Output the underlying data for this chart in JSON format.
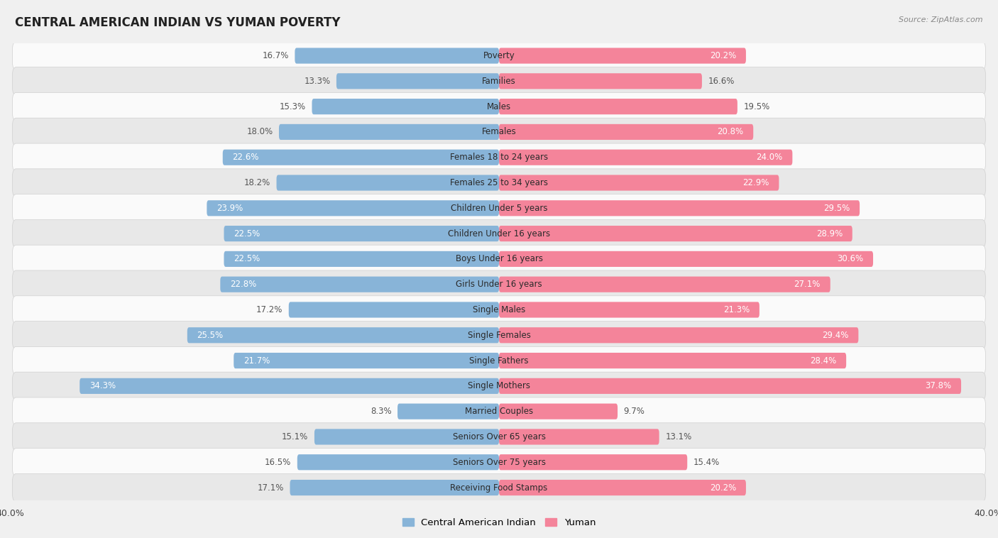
{
  "title": "CENTRAL AMERICAN INDIAN VS YUMAN POVERTY",
  "source": "Source: ZipAtlas.com",
  "categories": [
    "Poverty",
    "Families",
    "Males",
    "Females",
    "Females 18 to 24 years",
    "Females 25 to 34 years",
    "Children Under 5 years",
    "Children Under 16 years",
    "Boys Under 16 years",
    "Girls Under 16 years",
    "Single Males",
    "Single Females",
    "Single Fathers",
    "Single Mothers",
    "Married Couples",
    "Seniors Over 65 years",
    "Seniors Over 75 years",
    "Receiving Food Stamps"
  ],
  "central_american_indian": [
    16.7,
    13.3,
    15.3,
    18.0,
    22.6,
    18.2,
    23.9,
    22.5,
    22.5,
    22.8,
    17.2,
    25.5,
    21.7,
    34.3,
    8.3,
    15.1,
    16.5,
    17.1
  ],
  "yuman": [
    20.2,
    16.6,
    19.5,
    20.8,
    24.0,
    22.9,
    29.5,
    28.9,
    30.6,
    27.1,
    21.3,
    29.4,
    28.4,
    37.8,
    9.7,
    13.1,
    15.4,
    20.2
  ],
  "color_blue": "#88b4d8",
  "color_pink": "#f4849a",
  "color_blue_label_inside": "#ffffff",
  "color_pink_label_inside": "#ffffff",
  "color_label_outside": "#555555",
  "xlim": 40.0,
  "background_color": "#f0f0f0",
  "row_bg_light": "#fafafa",
  "row_bg_dark": "#e8e8e8",
  "row_border": "#d0d0d0",
  "inside_label_threshold": 20.0,
  "cat_label_fontsize": 8.5,
  "val_label_fontsize": 8.5
}
